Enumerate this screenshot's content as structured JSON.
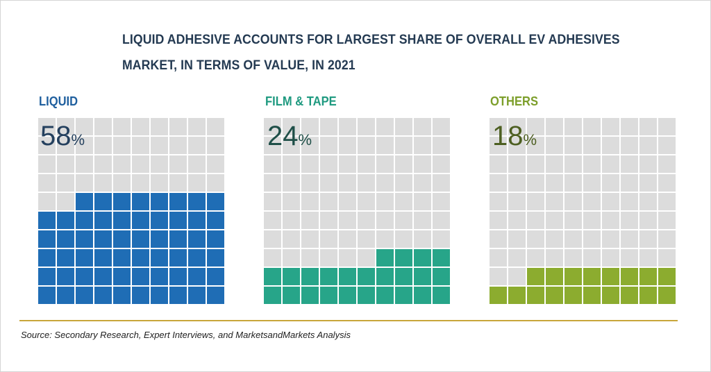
{
  "title_line1": "LIQUID ADHESIVE ACCOUNTS FOR LARGEST SHARE OF OVERALL EV ADHESIVES",
  "title_line2": "MARKET, IN TERMS OF VALUE, IN 2021",
  "source": "Source: Secondary Research, Expert Interviews, and MarketsandMarkets Analysis",
  "colors": {
    "empty_cell": "#dcdcdc",
    "title": "#243a52",
    "divider": "#c8a63a"
  },
  "chart_data": {
    "type": "waffle",
    "grid": "10x10",
    "cells_total": 100,
    "fill_order": "bottom-up, right-to-left",
    "series": [
      {
        "label": "LIQUID",
        "value": 58,
        "unit": "%",
        "color": "#1f6db5",
        "label_color": "#1f5f9e",
        "value_color": "#24405e"
      },
      {
        "label": "FILM & TAPE",
        "value": 24,
        "unit": "%",
        "color": "#27a589",
        "label_color": "#1f9a80",
        "value_color": "#1f4f48"
      },
      {
        "label": "OTHERS",
        "value": 18,
        "unit": "%",
        "color": "#8cac2f",
        "label_color": "#7c9e2a",
        "value_color": "#4d5f21"
      }
    ]
  }
}
